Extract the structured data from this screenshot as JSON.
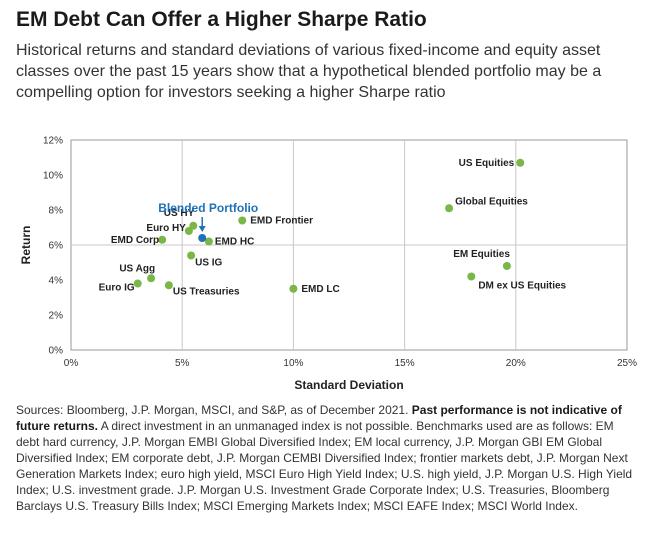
{
  "title": "EM Debt Can Offer a Higher Sharpe Ratio",
  "subtitle": "Historical returns and standard deviations of various fixed-income and equity asset classes over the past 15 years show that a hypothetical blended portfolio may be a compelling option for investors seeking a higher Sharpe ratio",
  "sources": {
    "prefix": "Sources: Bloomberg, J.P. Morgan, MSCI, and S&P, as of December 2021. ",
    "bold": "Past performance is not indicative of future returns.",
    "suffix": " A direct investment in an unmanaged index is not possible. Benchmarks used are as follows: EM debt hard currency, J.P. Morgan EMBI Global Diversified Index; EM local currency, J.P. Morgan GBI EM Global Diversified Index; EM corporate debt, J.P. Morgan CEMBI Diversified Index; frontier markets debt, J.P. Morgan Next Generation Markets Index; euro high yield, MSCI Euro High Yield Index; U.S. high yield, J.P. Morgan U.S. High Yield Index; U.S. investment grade. J.P. Morgan U.S. Investment Grade Corporate Index; U.S. Treasuries, Bloomberg Barclays U.S. Treasury Bills Index; MSCI Emerging Markets Index; MSCI EAFE Index; MSCI World Index."
  },
  "colors": {
    "point": "#7ab648",
    "blended": "#1f72b8",
    "grid": "#c8c8c8",
    "frame": "#999999"
  },
  "chart_data": {
    "type": "scatter",
    "xlabel": "Standard Deviation",
    "ylabel": "Return",
    "xlim": [
      0,
      25
    ],
    "ylim": [
      0,
      12
    ],
    "xticks": [
      0,
      5,
      10,
      15,
      20,
      25
    ],
    "yticks": [
      0,
      2,
      4,
      6,
      8,
      10,
      12
    ],
    "xtick_labels": [
      "0%",
      "5%",
      "10%",
      "15%",
      "20%",
      "25%"
    ],
    "ytick_labels": [
      "0%",
      "2%",
      "4%",
      "6%",
      "8%",
      "10%",
      "12%"
    ],
    "grid": "major gridlines at 5% (x) and 6% (y)",
    "points": [
      {
        "label": "US Equities",
        "x": 20.2,
        "y": 10.7
      },
      {
        "label": "Global Equities",
        "x": 17.0,
        "y": 8.1
      },
      {
        "label": "EM Equities",
        "x": 19.6,
        "y": 4.8
      },
      {
        "label": "DM ex US Equities",
        "x": 18.0,
        "y": 4.2
      },
      {
        "label": "EMD Frontier",
        "x": 7.7,
        "y": 7.4
      },
      {
        "label": "US HY",
        "x": 5.5,
        "y": 7.1
      },
      {
        "label": "Euro HY",
        "x": 5.3,
        "y": 6.8
      },
      {
        "label": "EMD Corp",
        "x": 4.1,
        "y": 6.3
      },
      {
        "label": "EMD HC",
        "x": 6.2,
        "y": 6.2
      },
      {
        "label": "US IG",
        "x": 5.4,
        "y": 5.4
      },
      {
        "label": "EMD LC",
        "x": 10.0,
        "y": 3.5
      },
      {
        "label": "US Agg",
        "x": 3.6,
        "y": 4.1
      },
      {
        "label": "Euro IG",
        "x": 3.0,
        "y": 3.8
      },
      {
        "label": "US Treasuries",
        "x": 4.4,
        "y": 3.7
      }
    ],
    "highlight": {
      "label": "Blended Portfolio",
      "x": 5.9,
      "y": 6.4
    }
  }
}
